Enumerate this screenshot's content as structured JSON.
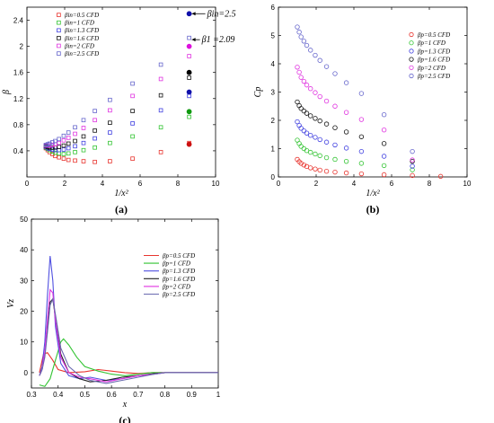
{
  "chart_data": [
    {
      "type": "scatter",
      "panel_label": "(a)",
      "xlabel": "1/x²",
      "ylabel": "β",
      "xlim": [
        0,
        10
      ],
      "ylim": [
        0,
        2.6
      ],
      "xticks": [
        "0",
        "2",
        "4",
        "6",
        "8",
        "10"
      ],
      "yticks": [
        "0.4",
        "0.8",
        "1.2",
        "1.6",
        "2",
        "2.4"
      ],
      "series": [
        {
          "name": "βin=0.5 CFD",
          "color": "#e8352f",
          "marker": "square",
          "x": [
            1.0,
            1.1,
            1.2,
            1.35,
            1.5,
            1.7,
            1.95,
            2.2,
            2.55,
            3.0,
            3.6,
            4.4,
            5.6,
            7.1,
            8.6
          ],
          "y": [
            0.44,
            0.41,
            0.38,
            0.35,
            0.32,
            0.3,
            0.28,
            0.26,
            0.25,
            0.24,
            0.23,
            0.24,
            0.28,
            0.38,
            0.52
          ]
        },
        {
          "name": "βin=1 CFD",
          "color": "#33c433",
          "marker": "square",
          "x": [
            1.0,
            1.1,
            1.2,
            1.35,
            1.5,
            1.7,
            1.95,
            2.2,
            2.55,
            3.0,
            3.6,
            4.4,
            5.6,
            7.1,
            8.6
          ],
          "y": [
            0.45,
            0.43,
            0.41,
            0.39,
            0.37,
            0.36,
            0.35,
            0.36,
            0.38,
            0.41,
            0.45,
            0.52,
            0.62,
            0.76,
            0.92
          ]
        },
        {
          "name": "βin=1.3 CFD",
          "color": "#4040e0",
          "marker": "square",
          "x": [
            1.0,
            1.1,
            1.2,
            1.35,
            1.5,
            1.7,
            1.95,
            2.2,
            2.55,
            3.0,
            3.6,
            4.4,
            5.6,
            7.1,
            8.6
          ],
          "y": [
            0.46,
            0.44,
            0.43,
            0.42,
            0.41,
            0.41,
            0.42,
            0.44,
            0.47,
            0.52,
            0.59,
            0.68,
            0.82,
            1.02,
            1.24
          ]
        },
        {
          "name": "βin=1.6 CFD",
          "color": "#111111",
          "marker": "square",
          "x": [
            1.0,
            1.1,
            1.2,
            1.35,
            1.5,
            1.7,
            1.95,
            2.2,
            2.55,
            3.0,
            3.6,
            4.4,
            5.6,
            7.1,
            8.6
          ],
          "y": [
            0.47,
            0.46,
            0.45,
            0.45,
            0.45,
            0.46,
            0.48,
            0.51,
            0.55,
            0.62,
            0.71,
            0.83,
            1.01,
            1.25,
            1.52
          ]
        },
        {
          "name": "βin=2 CFD",
          "color": "#e033e0",
          "marker": "square",
          "x": [
            1.0,
            1.1,
            1.2,
            1.35,
            1.5,
            1.7,
            1.95,
            2.2,
            2.55,
            3.0,
            3.6,
            4.4,
            5.6,
            7.1,
            8.6
          ],
          "y": [
            0.48,
            0.48,
            0.48,
            0.49,
            0.5,
            0.52,
            0.56,
            0.6,
            0.66,
            0.75,
            0.87,
            1.02,
            1.24,
            1.5,
            1.85
          ]
        },
        {
          "name": "βin=2.5 CFD",
          "color": "#6666cc",
          "marker": "square",
          "x": [
            1.0,
            1.1,
            1.2,
            1.35,
            1.5,
            1.7,
            1.95,
            2.2,
            2.55,
            3.0,
            3.6,
            4.4,
            5.6,
            7.1,
            8.6
          ],
          "y": [
            0.49,
            0.5,
            0.51,
            0.53,
            0.55,
            0.58,
            0.63,
            0.68,
            0.76,
            0.87,
            1.01,
            1.18,
            1.43,
            1.72,
            2.13
          ]
        }
      ],
      "theory_points": [
        {
          "x": 8.6,
          "y": 0.5,
          "color": "#cc1111"
        },
        {
          "x": 8.6,
          "y": 1.0,
          "color": "#119911"
        },
        {
          "x": 8.6,
          "y": 1.3,
          "color": "#1111aa"
        },
        {
          "x": 8.6,
          "y": 1.6,
          "color": "#000000"
        },
        {
          "x": 8.6,
          "y": 2.0,
          "color": "#dd11dd"
        },
        {
          "x": 8.6,
          "y": 2.5,
          "color": "#1111aa"
        }
      ],
      "annotations": [
        "βin=2.5",
        "β1 =2.09"
      ],
      "legend_position": "top-left"
    },
    {
      "type": "scatter",
      "panel_label": "(b)",
      "xlabel": "1/x²",
      "ylabel": "Cp",
      "xlim": [
        0,
        10
      ],
      "ylim": [
        0,
        6
      ],
      "xticks": [
        "0",
        "2",
        "4",
        "6",
        "8",
        "10"
      ],
      "yticks": [
        "0",
        "1",
        "2",
        "3",
        "4",
        "5",
        "6"
      ],
      "series": [
        {
          "name": "βp=0.5 CFD",
          "color": "#e8352f",
          "marker": "circle",
          "x": [
            1.0,
            1.1,
            1.2,
            1.35,
            1.5,
            1.7,
            1.95,
            2.2,
            2.55,
            3.0,
            3.6,
            4.4,
            5.6,
            7.1,
            8.6
          ],
          "y": [
            0.62,
            0.54,
            0.48,
            0.42,
            0.37,
            0.32,
            0.28,
            0.24,
            0.2,
            0.17,
            0.14,
            0.11,
            0.08,
            0.05,
            0.02
          ]
        },
        {
          "name": "βp=1 CFD",
          "color": "#33c433",
          "marker": "circle",
          "x": [
            1.0,
            1.1,
            1.2,
            1.35,
            1.5,
            1.7,
            1.95,
            2.2,
            2.55,
            3.0,
            3.6,
            4.4,
            5.6,
            7.1
          ],
          "y": [
            1.3,
            1.18,
            1.08,
            1.0,
            0.93,
            0.87,
            0.81,
            0.75,
            0.68,
            0.62,
            0.55,
            0.48,
            0.4,
            0.25
          ]
        },
        {
          "name": "βp=1.3 CFD",
          "color": "#4040e0",
          "marker": "circle",
          "x": [
            1.0,
            1.1,
            1.2,
            1.35,
            1.5,
            1.7,
            1.95,
            2.2,
            2.55,
            3.0,
            3.6,
            4.4,
            5.6,
            7.1
          ],
          "y": [
            1.95,
            1.82,
            1.72,
            1.63,
            1.55,
            1.47,
            1.4,
            1.32,
            1.23,
            1.13,
            1.02,
            0.9,
            0.73,
            0.38
          ]
        },
        {
          "name": "βp=1.6 CFD",
          "color": "#111111",
          "marker": "circle",
          "x": [
            1.0,
            1.1,
            1.2,
            1.35,
            1.5,
            1.7,
            1.95,
            2.2,
            2.55,
            3.0,
            3.6,
            4.4,
            5.6,
            7.1
          ],
          "y": [
            2.65,
            2.52,
            2.42,
            2.33,
            2.25,
            2.16,
            2.07,
            1.98,
            1.87,
            1.74,
            1.59,
            1.42,
            1.18,
            0.55
          ]
        },
        {
          "name": "βp=2 CFD",
          "color": "#e033e0",
          "marker": "circle",
          "x": [
            1.0,
            1.1,
            1.2,
            1.35,
            1.5,
            1.7,
            1.95,
            2.2,
            2.55,
            3.0,
            3.6,
            4.4,
            5.6,
            7.1
          ],
          "y": [
            3.88,
            3.7,
            3.52,
            3.38,
            3.25,
            3.12,
            2.98,
            2.84,
            2.68,
            2.5,
            2.28,
            2.03,
            1.66,
            0.6
          ]
        },
        {
          "name": "βp=2.5 CFD",
          "color": "#6666cc",
          "marker": "circle",
          "x": [
            1.0,
            1.1,
            1.2,
            1.35,
            1.5,
            1.7,
            1.95,
            2.2,
            2.55,
            3.0,
            3.6,
            4.4,
            5.6,
            7.1
          ],
          "y": [
            5.3,
            5.12,
            4.95,
            4.8,
            4.65,
            4.48,
            4.3,
            4.12,
            3.9,
            3.65,
            3.33,
            2.95,
            2.2,
            0.9
          ]
        }
      ],
      "legend_position": "top-right"
    },
    {
      "type": "line",
      "panel_label": "(c)",
      "xlabel": "x",
      "ylabel": "Vz",
      "xlim": [
        0.3,
        1.0
      ],
      "ylim": [
        -5,
        50
      ],
      "xticks": [
        "0.3",
        "0.4",
        "0.5",
        "0.6",
        "0.7",
        "0.8",
        "0.9",
        "1"
      ],
      "yticks": [
        "0",
        "10",
        "20",
        "30",
        "40",
        "50"
      ],
      "series": [
        {
          "name": "βp=0.5 CFD",
          "color": "#e8352f",
          "x": [
            0.33,
            0.345,
            0.36,
            0.38,
            0.4,
            0.44,
            0.5,
            0.55,
            0.6,
            0.65,
            0.7,
            0.75,
            0.8,
            1.0
          ],
          "y": [
            0.0,
            6.0,
            6.5,
            4.0,
            1.0,
            0.0,
            0.3,
            1.0,
            0.5,
            0.0,
            -0.3,
            0.0,
            0.0,
            0.0
          ]
        },
        {
          "name": "βp=1 CFD",
          "color": "#33c433",
          "x": [
            0.33,
            0.35,
            0.37,
            0.39,
            0.41,
            0.42,
            0.44,
            0.47,
            0.5,
            0.55,
            0.6,
            0.65,
            0.7,
            0.75,
            0.8,
            1.0
          ],
          "y": [
            -4.0,
            -4.5,
            -2.0,
            4.0,
            10.0,
            11.0,
            9.0,
            5.0,
            2.0,
            0.5,
            -0.5,
            -1.0,
            -0.5,
            0.0,
            0.0,
            0.0
          ]
        },
        {
          "name": "βp=1.3 CFD",
          "color": "#5050e0",
          "x": [
            0.33,
            0.34,
            0.35,
            0.36,
            0.37,
            0.38,
            0.39,
            0.41,
            0.44,
            0.48,
            0.52,
            0.58,
            0.64,
            0.7,
            0.76,
            0.8,
            1.0
          ],
          "y": [
            -1.0,
            2.0,
            10.0,
            25.0,
            38.0,
            30.0,
            15.0,
            3.0,
            -1.0,
            -2.0,
            -1.5,
            -2.5,
            -2.0,
            -1.0,
            -0.5,
            0.0,
            0.0
          ]
        },
        {
          "name": "βp=1.6 CFD",
          "color": "#222222",
          "x": [
            0.33,
            0.34,
            0.35,
            0.36,
            0.37,
            0.38,
            0.39,
            0.41,
            0.44,
            0.48,
            0.52,
            0.58,
            0.64,
            0.7,
            0.76,
            0.8,
            1.0
          ],
          "y": [
            -1.0,
            1.0,
            6.0,
            15.0,
            23.0,
            24.0,
            18.0,
            6.0,
            0.0,
            -2.0,
            -3.0,
            -2.5,
            -1.5,
            -1.0,
            -0.3,
            0.0,
            0.0
          ]
        },
        {
          "name": "βp=2 CFD",
          "color": "#e033e0",
          "x": [
            0.33,
            0.34,
            0.35,
            0.36,
            0.37,
            0.38,
            0.39,
            0.41,
            0.44,
            0.48,
            0.52,
            0.58,
            0.64,
            0.7,
            0.76,
            0.8,
            1.0
          ],
          "y": [
            -1.0,
            1.0,
            7.0,
            17.0,
            27.0,
            26.0,
            17.0,
            5.0,
            0.0,
            -1.5,
            -2.0,
            -3.0,
            -2.0,
            -1.0,
            -0.5,
            0.0,
            0.0
          ]
        },
        {
          "name": "βp=2.5 CFD",
          "color": "#6a6ab0",
          "x": [
            0.33,
            0.34,
            0.35,
            0.36,
            0.37,
            0.38,
            0.39,
            0.41,
            0.44,
            0.48,
            0.52,
            0.58,
            0.64,
            0.7,
            0.76,
            0.8,
            1.0
          ],
          "y": [
            -1.0,
            1.0,
            5.0,
            13.0,
            22.0,
            24.0,
            19.0,
            8.0,
            2.0,
            -1.0,
            -2.5,
            -3.5,
            -2.5,
            -1.5,
            -0.5,
            0.0,
            0.0
          ]
        }
      ],
      "legend_position": "right"
    }
  ]
}
